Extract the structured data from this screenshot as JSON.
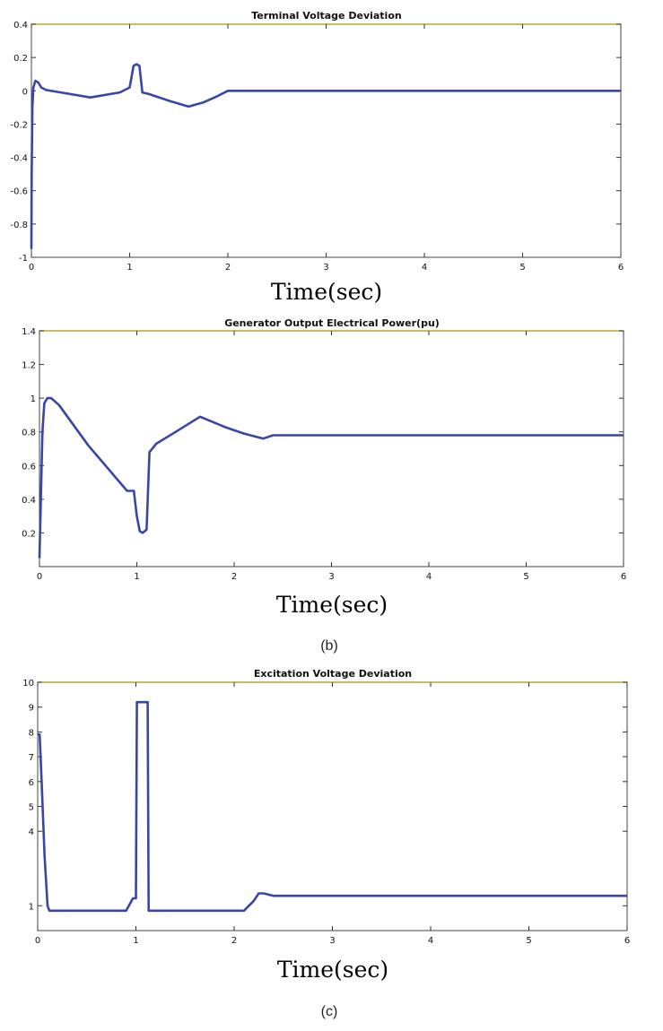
{
  "colors": {
    "series": "#3a45a8",
    "frame_top": "#b8a830"
  },
  "chart_data": [
    {
      "type": "line",
      "title": "Terminal Voltage Deviation",
      "xlabel": "Time(sec)",
      "ylabel": "",
      "caption": "",
      "xlim": [
        0,
        6
      ],
      "ylim": [
        -1,
        0.4
      ],
      "xticks": [
        0,
        1,
        2,
        3,
        4,
        5,
        6
      ],
      "yticks": [
        -1,
        -0.8,
        -0.6,
        -0.4,
        -0.2,
        0,
        0.2,
        0.4
      ],
      "ytick_labels": [
        "-1",
        "-0.8",
        "-0.6",
        "-0.4",
        "-0.2",
        "0",
        "0.2",
        "0.4"
      ],
      "grid": false,
      "series": [
        {
          "x": [
            0,
            0.003,
            0.01,
            0.02,
            0.04,
            0.07,
            0.1,
            0.15,
            0.3,
            0.6,
            0.9,
            1.0,
            1.04,
            1.07,
            1.1,
            1.13,
            1.2,
            1.4,
            1.6,
            1.75,
            1.9,
            2.0,
            6.0
          ],
          "y": [
            -0.95,
            -0.5,
            -0.1,
            0.02,
            0.06,
            0.05,
            0.02,
            0.005,
            -0.01,
            -0.04,
            -0.01,
            0.02,
            0.15,
            0.16,
            0.15,
            -0.01,
            -0.02,
            -0.06,
            -0.095,
            -0.07,
            -0.03,
            0.0,
            0.0
          ]
        }
      ]
    },
    {
      "type": "line",
      "title": "Generator Output Electrical Power(pu)",
      "xlabel": "Time(sec)",
      "ylabel": "",
      "caption": "(b)",
      "xlim": [
        0,
        6
      ],
      "ylim": [
        0,
        1.4
      ],
      "xticks": [
        0,
        1,
        2,
        3,
        4,
        5,
        6
      ],
      "yticks": [
        0.2,
        0.4,
        0.6,
        0.8,
        1,
        1.2,
        1.4
      ],
      "ytick_labels": [
        "0.2",
        "0.4",
        "0.6",
        "0.8",
        "1",
        "1.2",
        "1.4"
      ],
      "grid": false,
      "series": [
        {
          "x": [
            0,
            0.01,
            0.03,
            0.05,
            0.08,
            0.12,
            0.2,
            0.5,
            0.9,
            0.97,
            1.0,
            1.03,
            1.06,
            1.1,
            1.13,
            1.2,
            1.4,
            1.65,
            1.9,
            2.1,
            2.3,
            2.4,
            6.0
          ],
          "y": [
            0.05,
            0.3,
            0.8,
            0.97,
            1.0,
            1.0,
            0.96,
            0.72,
            0.45,
            0.45,
            0.3,
            0.21,
            0.2,
            0.22,
            0.68,
            0.73,
            0.8,
            0.89,
            0.83,
            0.79,
            0.76,
            0.78,
            0.78
          ]
        }
      ]
    },
    {
      "type": "line",
      "title": "Excitation Voltage Deviation",
      "xlabel": "Time(sec)",
      "ylabel": "",
      "caption": "(c)",
      "xlim": [
        0,
        6
      ],
      "ylim": [
        0,
        10
      ],
      "xticks": [
        0,
        1,
        2,
        3,
        4,
        5,
        6
      ],
      "yticks": [
        1,
        4,
        5,
        6,
        7,
        8,
        9,
        10
      ],
      "ytick_labels": [
        "1",
        "4",
        "5",
        "6",
        "7",
        "8",
        "9",
        "10"
      ],
      "grid": false,
      "series": [
        {
          "x": [
            0,
            0.02,
            0.04,
            0.07,
            0.1,
            0.12,
            0.5,
            0.9,
            0.97,
            1.0,
            1.01,
            1.03,
            1.1,
            1.12,
            1.13,
            1.2,
            2.1,
            2.2,
            2.25,
            2.3,
            2.4,
            6.0
          ],
          "y": [
            7.9,
            7.9,
            6.0,
            3.0,
            1.0,
            0.8,
            0.8,
            0.8,
            1.3,
            1.3,
            9.2,
            9.2,
            9.2,
            9.2,
            0.8,
            0.8,
            0.8,
            1.2,
            1.5,
            1.5,
            1.4,
            1.4
          ]
        }
      ]
    }
  ]
}
